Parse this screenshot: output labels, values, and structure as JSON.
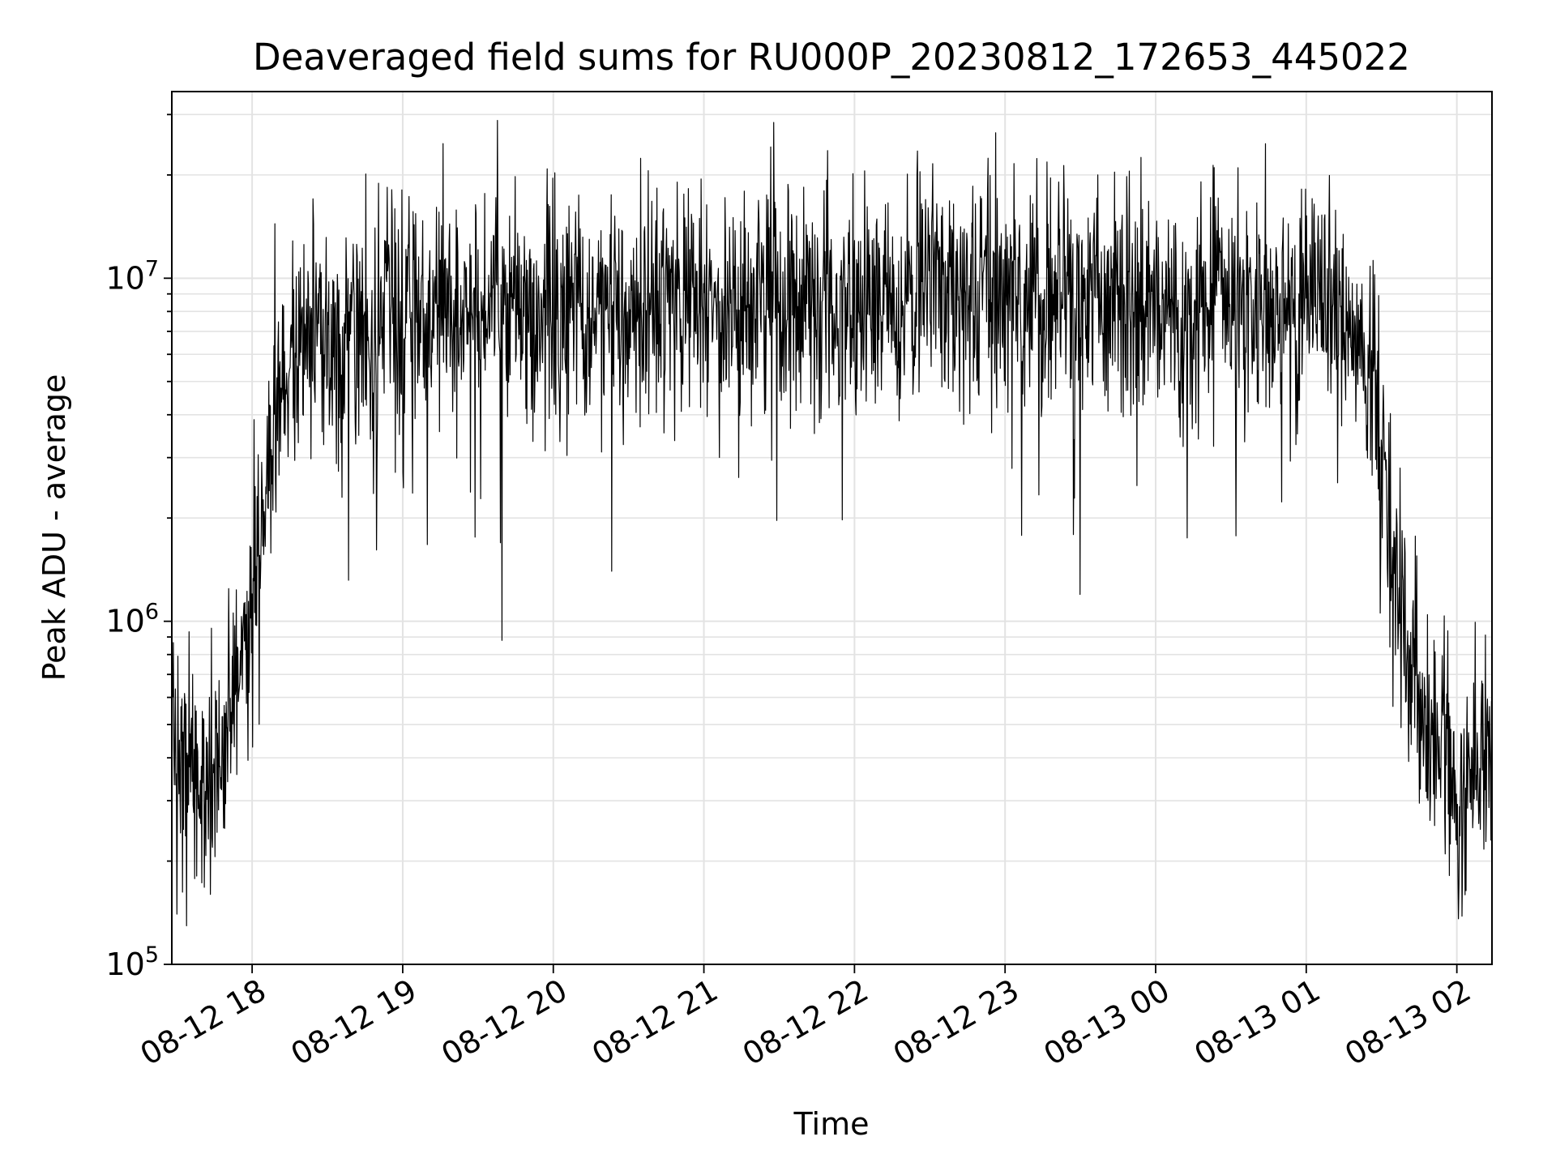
{
  "chart_data": {
    "type": "line",
    "title": "Deaveraged field sums for RU000P_20230812_172653_445022",
    "xlabel": "Time",
    "ylabel": "Peak ADU - average",
    "yscale": "log",
    "ylim": [
      100000,
      35000000
    ],
    "xlim": [
      "2023-08-12 17:28",
      "2023-08-13 02:14"
    ],
    "x_ticks": [
      "08-12 18",
      "08-12 19",
      "08-12 20",
      "08-12 21",
      "08-12 22",
      "08-12 23",
      "08-13 00",
      "08-13 01",
      "08-13 02"
    ],
    "y_ticks": [
      {
        "value": 100000,
        "base": "10",
        "exp": "5"
      },
      {
        "value": 1000000,
        "base": "10",
        "exp": "6"
      },
      {
        "value": 10000000,
        "base": "10",
        "exp": "7"
      }
    ],
    "grid": true,
    "line_color": "#000000",
    "series": [
      {
        "x": [
          "2023-08-12 17:28",
          "2023-08-12 17:35",
          "2023-08-12 17:42",
          "2023-08-12 17:48",
          "2023-08-12 17:55",
          "2023-08-12 18:00",
          "2023-08-12 18:05",
          "2023-08-12 18:10",
          "2023-08-12 18:20",
          "2023-08-12 18:30",
          "2023-08-12 18:45",
          "2023-08-12 19:00",
          "2023-08-12 19:30",
          "2023-08-12 20:00",
          "2023-08-12 20:30",
          "2023-08-12 21:00",
          "2023-08-12 21:30",
          "2023-08-12 22:00",
          "2023-08-12 22:30",
          "2023-08-12 23:00",
          "2023-08-12 23:30",
          "2023-08-13 00:00",
          "2023-08-13 00:30",
          "2023-08-13 00:45",
          "2023-08-13 01:00",
          "2023-08-13 01:15",
          "2023-08-13 01:25",
          "2023-08-13 01:32",
          "2023-08-13 01:38",
          "2023-08-13 01:45",
          "2023-08-13 01:52",
          "2023-08-13 02:00",
          "2023-08-13 02:05",
          "2023-08-13 02:14"
        ],
        "y": [
          450000,
          400000,
          350000,
          420000,
          900000,
          1100000,
          2000000,
          4500000,
          6500000,
          7000000,
          6500000,
          7500000,
          8000000,
          8500000,
          8700000,
          8300000,
          8800000,
          8500000,
          8600000,
          8800000,
          8700000,
          8600000,
          8500000,
          8700000,
          8200000,
          8000000,
          5000000,
          2200000,
          900000,
          600000,
          450000,
          280000,
          350000,
          450000
        ]
      }
    ]
  }
}
